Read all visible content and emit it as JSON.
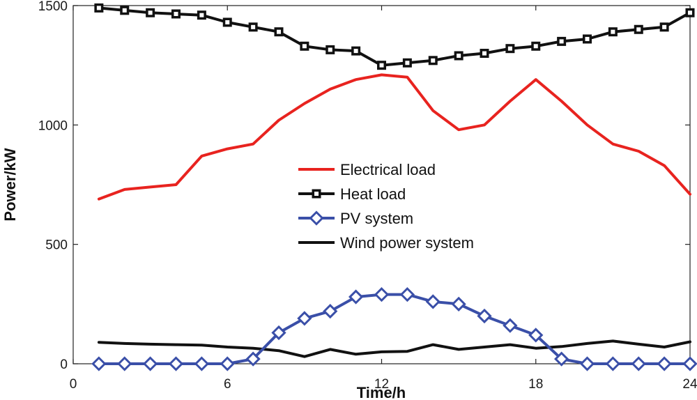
{
  "chart_data": {
    "type": "line",
    "title": "",
    "xlabel": "Time/h",
    "ylabel": "Power/kW",
    "xlim": [
      0,
      24
    ],
    "ylim": [
      0,
      1500
    ],
    "xticks": [
      0,
      6,
      12,
      18,
      24
    ],
    "xtick_labels": [
      "0",
      "6",
      "12",
      "18",
      "24"
    ],
    "yticks": [
      0,
      500,
      1000,
      1500
    ],
    "ytick_labels": [
      "0",
      "500",
      "1000",
      "1500"
    ],
    "grid": false,
    "legend_position": "center",
    "x": [
      1,
      2,
      3,
      4,
      5,
      6,
      7,
      8,
      9,
      10,
      11,
      12,
      13,
      14,
      15,
      16,
      17,
      18,
      19,
      20,
      21,
      22,
      23,
      24
    ],
    "series": [
      {
        "name": "Electrical load",
        "color": "#e8231f",
        "marker": "none",
        "values": [
          690,
          730,
          740,
          750,
          870,
          900,
          920,
          1020,
          1090,
          1150,
          1190,
          1210,
          1200,
          1060,
          980,
          1000,
          1100,
          1190,
          1100,
          1000,
          920,
          890,
          830,
          710
        ]
      },
      {
        "name": "Heat load",
        "color": "#111111",
        "marker": "square",
        "values": [
          1490,
          1480,
          1470,
          1465,
          1460,
          1430,
          1410,
          1390,
          1330,
          1315,
          1310,
          1250,
          1260,
          1270,
          1290,
          1300,
          1320,
          1330,
          1350,
          1360,
          1390,
          1400,
          1410,
          1470
        ]
      },
      {
        "name": "PV system",
        "color": "#3a4fa8",
        "marker": "diamond",
        "values": [
          0,
          0,
          0,
          0,
          0,
          0,
          20,
          130,
          190,
          220,
          280,
          290,
          290,
          260,
          250,
          200,
          160,
          120,
          20,
          0,
          0,
          0,
          0,
          0
        ]
      },
      {
        "name": "Wind power system",
        "color": "#111111",
        "marker": "none",
        "values": [
          90,
          85,
          82,
          80,
          78,
          70,
          65,
          55,
          30,
          60,
          40,
          50,
          52,
          80,
          60,
          70,
          80,
          65,
          72,
          85,
          95,
          82,
          70,
          92
        ]
      }
    ]
  }
}
